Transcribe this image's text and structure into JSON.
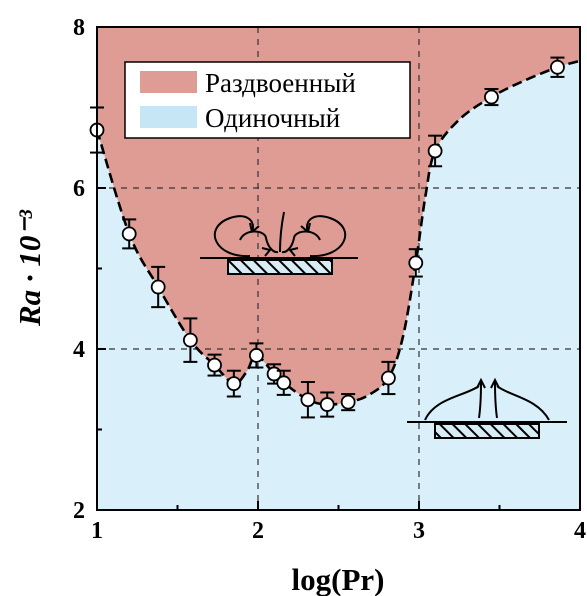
{
  "chart_data": {
    "type": "scatter",
    "xlabel": "log(Pr)",
    "ylabel": "Ra · 10⁻³",
    "xlim": [
      1,
      4
    ],
    "ylim": [
      2,
      8
    ],
    "x_ticks": [
      "1",
      "2",
      "3",
      "4"
    ],
    "y_ticks": [
      "2",
      "4",
      "6",
      "8"
    ],
    "grid": "dashed at x=2, x=3, y=4, y=6",
    "legend": {
      "placement": "top-left",
      "entries": [
        {
          "label": "Раздвоенный",
          "color": "#de9c95"
        },
        {
          "label": "Одиночный",
          "color": "#c6e6f6"
        }
      ]
    },
    "series": [
      {
        "points": [
          {
            "x": 1.0,
            "y": 6.72,
            "err": 0.28
          },
          {
            "x": 1.2,
            "y": 5.43,
            "err": 0.18
          },
          {
            "x": 1.38,
            "y": 4.77,
            "err": 0.25
          },
          {
            "x": 1.58,
            "y": 4.11,
            "err": 0.27
          },
          {
            "x": 1.73,
            "y": 3.8,
            "err": 0.13
          },
          {
            "x": 1.85,
            "y": 3.57,
            "err": 0.16
          },
          {
            "x": 1.99,
            "y": 3.92,
            "err": 0.15
          },
          {
            "x": 2.1,
            "y": 3.69,
            "err": 0.12
          },
          {
            "x": 2.16,
            "y": 3.58,
            "err": 0.15
          },
          {
            "x": 2.31,
            "y": 3.37,
            "err": 0.22
          },
          {
            "x": 2.43,
            "y": 3.31,
            "err": 0.15
          },
          {
            "x": 2.56,
            "y": 3.34,
            "err": 0.1
          },
          {
            "x": 2.81,
            "y": 3.64,
            "err": 0.2
          },
          {
            "x": 2.98,
            "y": 5.07,
            "err": 0.17
          },
          {
            "x": 3.1,
            "y": 6.46,
            "err": 0.19
          },
          {
            "x": 3.45,
            "y": 7.13,
            "err": 0.1
          },
          {
            "x": 3.86,
            "y": 7.5,
            "err": 0.12
          }
        ]
      }
    ],
    "boundary_curve": [
      [
        1.0,
        6.72
      ],
      [
        1.2,
        5.43
      ],
      [
        1.38,
        4.77
      ],
      [
        1.58,
        4.11
      ],
      [
        1.73,
        3.8
      ],
      [
        1.85,
        3.57
      ],
      [
        1.93,
        3.72
      ],
      [
        1.99,
        3.92
      ],
      [
        2.1,
        3.69
      ],
      [
        2.16,
        3.58
      ],
      [
        2.31,
        3.37
      ],
      [
        2.43,
        3.31
      ],
      [
        2.56,
        3.34
      ],
      [
        2.68,
        3.42
      ],
      [
        2.81,
        3.64
      ],
      [
        2.9,
        4.15
      ],
      [
        2.98,
        5.07
      ],
      [
        3.04,
        5.9
      ],
      [
        3.1,
        6.46
      ],
      [
        3.25,
        6.85
      ],
      [
        3.45,
        7.13
      ],
      [
        3.65,
        7.33
      ],
      [
        3.86,
        7.5
      ],
      [
        4.0,
        7.58
      ]
    ],
    "colors": {
      "split_region": "#de9c95",
      "single_region": "#d9eff9",
      "boundary": "#000000"
    }
  }
}
